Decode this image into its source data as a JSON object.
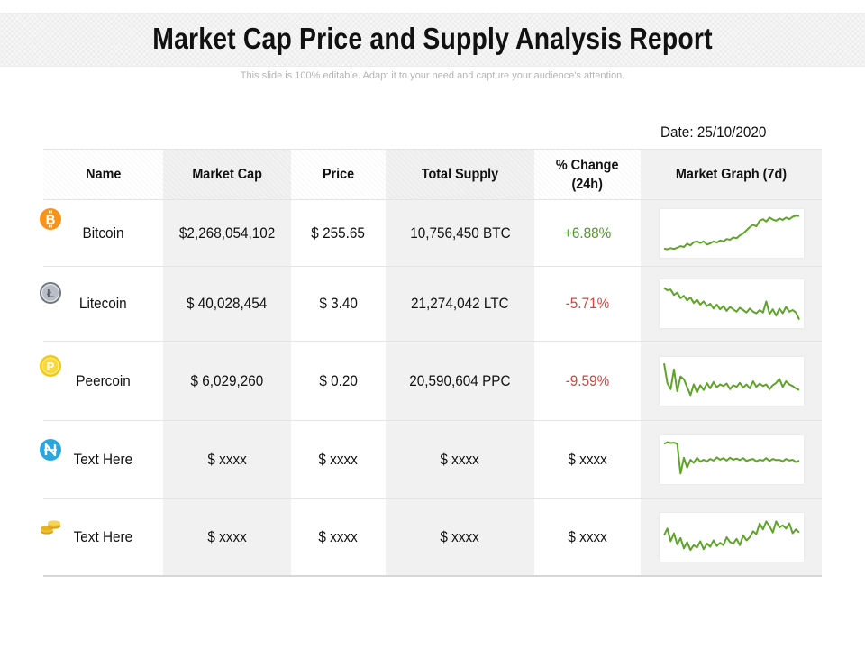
{
  "title": "Market Cap Price and Supply Analysis Report",
  "subtitle": "This slide is 100% editable. Adapt it to your need and capture your audience's attention.",
  "date": "Date: 25/10/2020",
  "headers": {
    "name": "Name",
    "market_cap": "Market Cap",
    "price": "Price",
    "total_supply": "Total Supply",
    "change_line1": "% Change",
    "change_line2": "(24h)",
    "graph": "Market Graph (7d)"
  },
  "colors": {
    "positive": "#4f9a2a",
    "negative": "#d9433a",
    "spark_line": "#5ea428",
    "bitcoin": "#f7931a",
    "litecoin": "#8a8f99",
    "peercoin": "#f2c811",
    "nxt": "#2aa7dd",
    "coins": "#e6b31e"
  },
  "rows": [
    {
      "icon": "bitcoin-icon",
      "name": "Bitcoin",
      "market_cap": "$2,268,054,102",
      "price": "$ 255.65",
      "total_supply": "10,756,450 BTC",
      "change": "+6.88%",
      "change_sign": "pos",
      "spark": [
        0.12,
        0.1,
        0.13,
        0.11,
        0.14,
        0.18,
        0.16,
        0.24,
        0.2,
        0.28,
        0.3,
        0.26,
        0.3,
        0.22,
        0.25,
        0.3,
        0.27,
        0.32,
        0.3,
        0.36,
        0.34,
        0.4,
        0.38,
        0.45,
        0.5,
        0.58,
        0.66,
        0.72,
        0.68,
        0.82,
        0.86,
        0.8,
        0.9,
        0.85,
        0.82,
        0.88,
        0.84,
        0.9,
        0.86,
        0.92,
        0.95,
        0.94
      ]
    },
    {
      "icon": "litecoin-icon",
      "name": "Litecoin",
      "market_cap": "$ 40,028,454",
      "price": "$ 3.40",
      "total_supply": "21,274,042 LTC",
      "change": "-5.71%",
      "change_sign": "neg",
      "spark": [
        0.9,
        0.84,
        0.86,
        0.72,
        0.78,
        0.64,
        0.7,
        0.58,
        0.66,
        0.52,
        0.6,
        0.48,
        0.56,
        0.44,
        0.5,
        0.38,
        0.48,
        0.36,
        0.44,
        0.32,
        0.42,
        0.36,
        0.3,
        0.4,
        0.34,
        0.28,
        0.38,
        0.3,
        0.26,
        0.34,
        0.28,
        0.56,
        0.24,
        0.36,
        0.2,
        0.38,
        0.26,
        0.42,
        0.3,
        0.34,
        0.28,
        0.1
      ]
    },
    {
      "icon": "peercoin-icon",
      "name": "Peercoin",
      "market_cap": "$ 6,029,260",
      "price": "$ 0.20",
      "total_supply": "20,590,604 PPC",
      "change": "-9.59%",
      "change_sign": "neg",
      "spark": [
        0.95,
        0.45,
        0.3,
        0.8,
        0.25,
        0.62,
        0.55,
        0.35,
        0.15,
        0.42,
        0.22,
        0.4,
        0.28,
        0.45,
        0.32,
        0.48,
        0.35,
        0.42,
        0.38,
        0.44,
        0.3,
        0.4,
        0.36,
        0.46,
        0.34,
        0.42,
        0.32,
        0.5,
        0.36,
        0.44,
        0.38,
        0.42,
        0.3,
        0.4,
        0.46,
        0.56,
        0.36,
        0.5,
        0.42,
        0.38,
        0.32,
        0.28
      ]
    },
    {
      "icon": "nxt-icon",
      "name": "Text Here",
      "market_cap": "$ xxxx",
      "price": "$ xxxx",
      "total_supply": "$ xxxx",
      "change": "$ xxxx",
      "change_sign": "none",
      "spark": [
        0.9,
        0.94,
        0.92,
        0.93,
        0.9,
        0.15,
        0.55,
        0.3,
        0.5,
        0.42,
        0.55,
        0.45,
        0.5,
        0.46,
        0.52,
        0.48,
        0.56,
        0.5,
        0.54,
        0.48,
        0.55,
        0.5,
        0.53,
        0.49,
        0.54,
        0.47,
        0.5,
        0.52,
        0.46,
        0.5,
        0.48,
        0.54,
        0.47,
        0.52,
        0.49,
        0.5,
        0.46,
        0.52,
        0.48,
        0.5,
        0.44,
        0.48
      ]
    },
    {
      "icon": "coins-icon",
      "name": "Text Here",
      "market_cap": "$ xxxx",
      "price": "$ xxxx",
      "total_supply": "$ xxxx",
      "change": "$ xxxx",
      "change_sign": "none",
      "spark": [
        0.55,
        0.72,
        0.4,
        0.6,
        0.32,
        0.48,
        0.22,
        0.38,
        0.18,
        0.3,
        0.24,
        0.4,
        0.2,
        0.34,
        0.26,
        0.42,
        0.28,
        0.36,
        0.3,
        0.5,
        0.38,
        0.34,
        0.46,
        0.3,
        0.55,
        0.42,
        0.5,
        0.65,
        0.58,
        0.85,
        0.7,
        0.9,
        0.78,
        0.62,
        0.9,
        0.75,
        0.8,
        0.72,
        0.85,
        0.6,
        0.7,
        0.62
      ]
    }
  ]
}
